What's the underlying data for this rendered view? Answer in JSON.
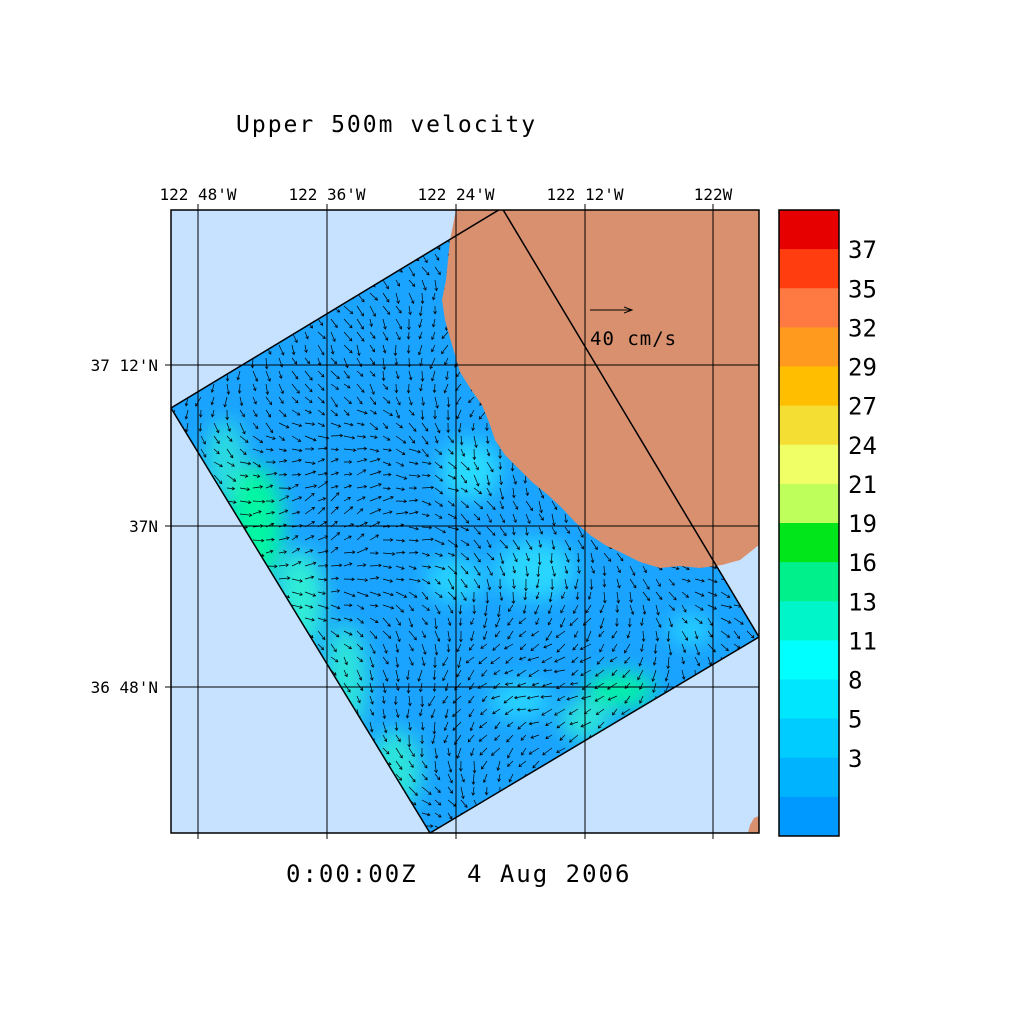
{
  "title": "Upper 500m velocity",
  "timestamp": "0:00:00Z   4 Aug 2006",
  "axes": {
    "x_ticks": [
      "122 48'W",
      "122 36'W",
      "122 24'W",
      "122 12'W",
      "122W"
    ],
    "y_ticks": [
      "37 12'N",
      "37N",
      "36 48'N"
    ]
  },
  "reference_vector": {
    "label": "40 cm/s"
  },
  "colorbar": {
    "labels": [
      "37",
      "35",
      "32",
      "29",
      "27",
      "24",
      "21",
      "19",
      "16",
      "13",
      "11",
      "8",
      "5",
      "3"
    ],
    "colors": [
      "#e60000",
      "#ff3d0f",
      "#ff7a42",
      "#ff9a1f",
      "#ffbe00",
      "#f5de33",
      "#f0ff66",
      "#bfff5c",
      "#00e61a",
      "#00f08c",
      "#00f5c9",
      "#00ffff",
      "#00e6ff",
      "#00ccff",
      "#00b3ff",
      "#0099ff"
    ]
  },
  "colors": {
    "ocean_background": "#c6e2ff",
    "land": "#d9906e",
    "domain_water": "#0099ff",
    "fast_current": "#00ff99"
  }
}
